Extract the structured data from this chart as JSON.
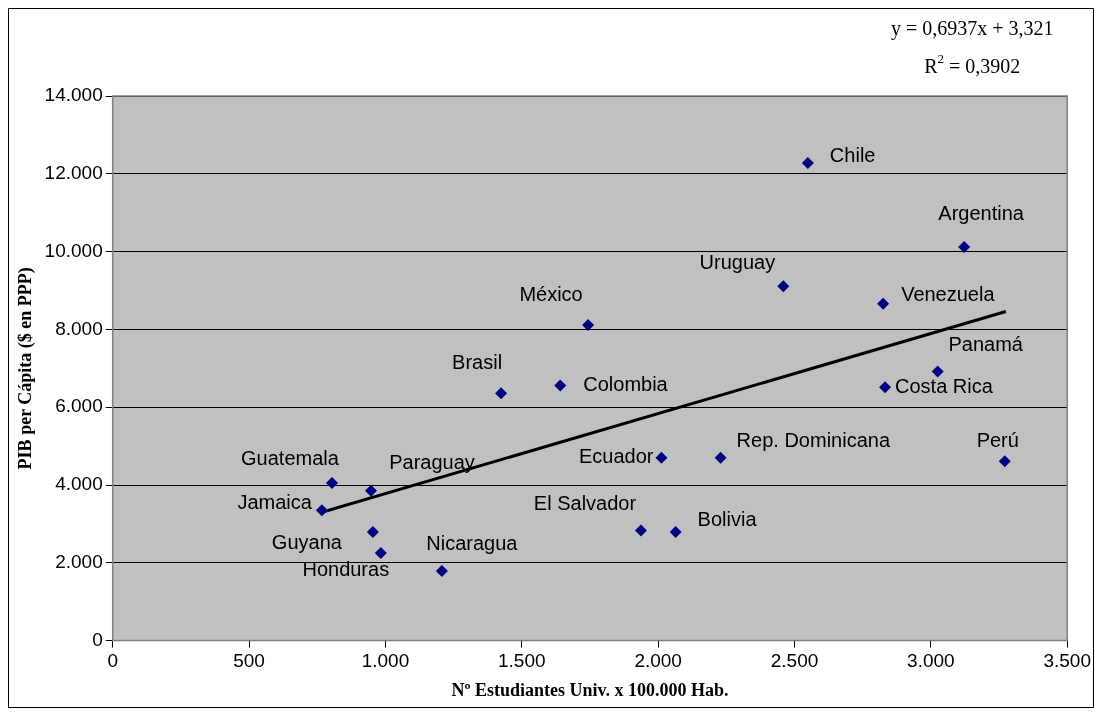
{
  "chart_data": {
    "type": "scatter",
    "xlabel": "Nº Estudiantes Univ. x 100.000 Hab.",
    "ylabel": "PIB per Cápita ($ en PPP)",
    "xlim": [
      0,
      3500
    ],
    "xticks": [
      0,
      500,
      {
        "value": 1000,
        "label": "1.000"
      },
      {
        "value": 1500,
        "label": "1.500"
      },
      {
        "value": 2000,
        "label": "2.000"
      },
      {
        "value": 2500,
        "label": "2.500"
      },
      {
        "value": 3000,
        "label": "3.000"
      },
      {
        "value": 3500,
        "label": "3.500"
      }
    ],
    "ylim": [
      0,
      14000
    ],
    "yticks": [
      0,
      {
        "value": 2000,
        "label": "2.000"
      },
      {
        "value": 4000,
        "label": "4.000"
      },
      {
        "value": 6000,
        "label": "6.000"
      },
      {
        "value": 8000,
        "label": "8.000"
      },
      {
        "value": 10000,
        "label": "10.000"
      },
      {
        "value": 12000,
        "label": "12.000"
      },
      {
        "value": 14000,
        "label": "14.000"
      }
    ],
    "grid": "y",
    "legend": false,
    "marker": "diamond",
    "series": [
      {
        "type": "scatter",
        "color": "#000080",
        "x": [
          2549,
          3122,
          2459,
          2825,
          1743,
          3025,
          2832,
          1641,
          1424,
          3271,
          2229,
          2012,
          1937,
          2064,
          804,
          947,
          767,
          954,
          983,
          1207
        ],
        "values": [
          12280,
          10120,
          9110,
          8660,
          8110,
          6920,
          6510,
          6560,
          6360,
          4610,
          4700,
          4700,
          2830,
          2790,
          4050,
          3850,
          3350,
          2790,
          2250,
          1790
        ]
      },
      {
        "type": "line",
        "color": "#000000",
        "marker": "none",
        "line_style": "solid",
        "x": [
          767,
          3275
        ],
        "values": [
          3300,
          8460
        ]
      }
    ],
    "annotations": [
      {
        "text": "Chile",
        "x": 2549,
        "y": 12280
      },
      {
        "text": "Argentina",
        "x": 3122,
        "y": 10120
      },
      {
        "text": "Uruguay",
        "x": 2459,
        "y": 9110
      },
      {
        "text": "Venezuela",
        "x": 2825,
        "y": 8660
      },
      {
        "text": "México",
        "x": 1743,
        "y": 8110
      },
      {
        "text": "Panamá",
        "x": 3025,
        "y": 6920
      },
      {
        "text": "Costa Rica",
        "x": 2832,
        "y": 6510
      },
      {
        "text": "Colombia",
        "x": 1641,
        "y": 6560
      },
      {
        "text": "Brasil",
        "x": 1424,
        "y": 6360
      },
      {
        "text": "Perú",
        "x": 3271,
        "y": 4610
      },
      {
        "text": "Rep. Dominicana",
        "x": 2229,
        "y": 4700
      },
      {
        "text": "Ecuador",
        "x": 2012,
        "y": 4700
      },
      {
        "text": "El Salvador",
        "x": 1937,
        "y": 2830
      },
      {
        "text": "Bolivia",
        "x": 2064,
        "y": 2790
      },
      {
        "text": "Guatemala",
        "x": 804,
        "y": 4050
      },
      {
        "text": "Paraguay",
        "x": 947,
        "y": 3850
      },
      {
        "text": "Jamaica",
        "x": 767,
        "y": 3350
      },
      {
        "text": "Guyana",
        "x": 954,
        "y": 2790
      },
      {
        "text": "Honduras",
        "x": 983,
        "y": 2250
      },
      {
        "text": "Nicaragua",
        "x": 1207,
        "y": 1790
      },
      "y = 0,6937x + 3,321",
      "R$^{2}$ = 0,3902"
    ]
  }
}
